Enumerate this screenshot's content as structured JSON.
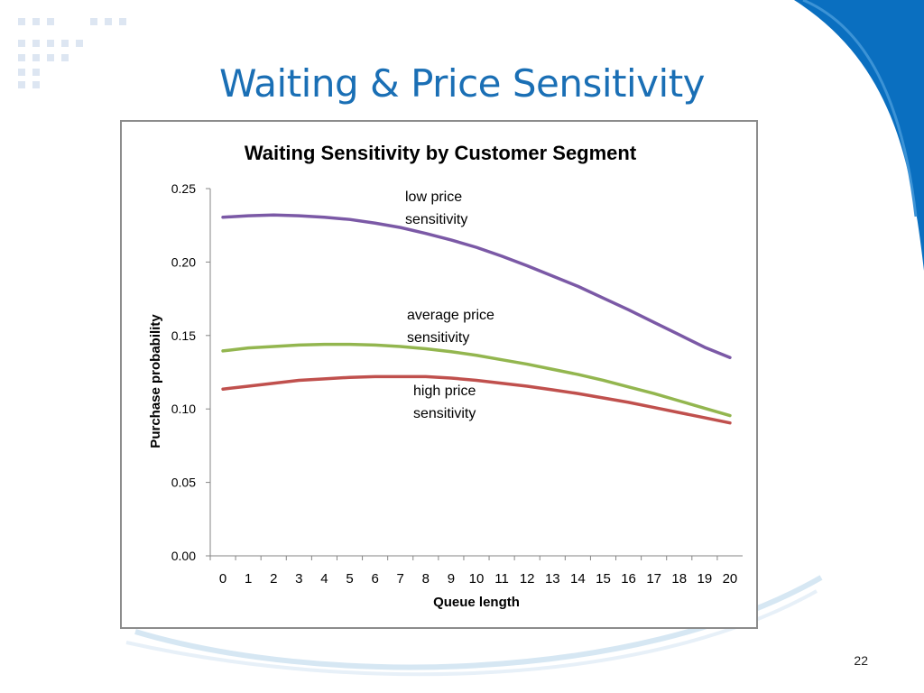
{
  "slide": {
    "title": "Waiting & Price Sensitivity",
    "page_number": "22"
  },
  "theme": {
    "title_color": "#1a6fb5",
    "accent_blue": "#0a6fc0",
    "decor_dots": "#dde6f2",
    "swoosh": "#d6e7f3"
  },
  "chart_data": {
    "type": "line",
    "title": "Waiting Sensitivity by Customer Segment",
    "xlabel": "Queue length",
    "ylabel": "Purchase  probability",
    "x": [
      0,
      1,
      2,
      3,
      4,
      5,
      6,
      7,
      8,
      9,
      10,
      11,
      12,
      13,
      14,
      15,
      16,
      17,
      18,
      19,
      20
    ],
    "ylim": [
      0,
      0.25
    ],
    "yticks": [
      "0.00",
      "0.05",
      "0.10",
      "0.15",
      "0.20",
      "0.25"
    ],
    "grid": false,
    "series": [
      {
        "name": "low price sensitivity",
        "color": "#7b59a6",
        "values": [
          0.2305,
          0.2315,
          0.232,
          0.2315,
          0.2305,
          0.229,
          0.2265,
          0.2235,
          0.2195,
          0.215,
          0.21,
          0.204,
          0.1975,
          0.1905,
          0.1835,
          0.1755,
          0.1675,
          0.159,
          0.1505,
          0.142,
          0.135
        ]
      },
      {
        "name": "average price sensitivity",
        "color": "#93b64f",
        "values": [
          0.1395,
          0.1415,
          0.1425,
          0.1435,
          0.144,
          0.144,
          0.1435,
          0.1425,
          0.141,
          0.139,
          0.1365,
          0.1335,
          0.1305,
          0.127,
          0.1235,
          0.1195,
          0.115,
          0.1105,
          0.1055,
          0.1005,
          0.0955
        ]
      },
      {
        "name": "high price sensitivity",
        "color": "#c0504d",
        "values": [
          0.1135,
          0.1155,
          0.1175,
          0.1195,
          0.1205,
          0.1215,
          0.122,
          0.122,
          0.122,
          0.121,
          0.1195,
          0.1175,
          0.1155,
          0.113,
          0.1105,
          0.1075,
          0.1045,
          0.101,
          0.0975,
          0.094,
          0.0905
        ]
      }
    ],
    "annotations": [
      {
        "series": 0,
        "lines": [
          "low price",
          "sensitivity"
        ]
      },
      {
        "series": 1,
        "lines": [
          "average price",
          "sensitivity"
        ]
      },
      {
        "series": 2,
        "lines": [
          "high price",
          "sensitivity"
        ]
      }
    ]
  }
}
